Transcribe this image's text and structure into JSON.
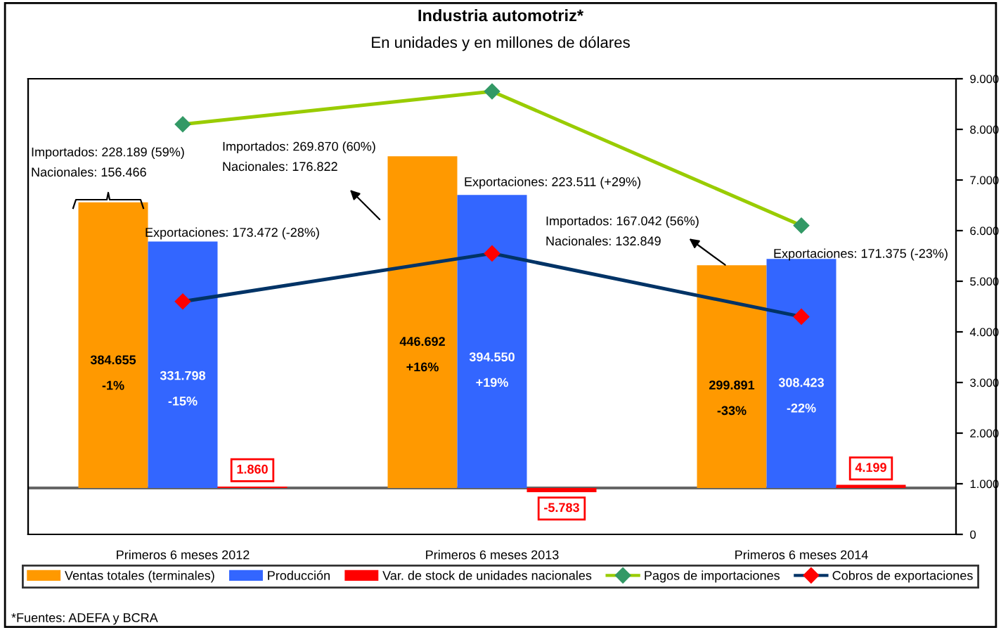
{
  "chart_data": {
    "type": "bar",
    "title": "Industria automotriz*",
    "subtitle": "En unidades y en millones de dólares",
    "categories": [
      "Primeros 6 meses 2012",
      "Primeros 6 meses 2013",
      "Primeros 6 meses 2014"
    ],
    "series": [
      {
        "name": "Ventas totales (terminales)",
        "color": "#ff9900",
        "values": [
          384655,
          446692,
          299891
        ],
        "value_labels": [
          "384.655\n\n-1%",
          "446.692\n\n+16%",
          "299.891\n\n-33%"
        ]
      },
      {
        "name": "Producción",
        "color": "#3366ff",
        "values": [
          331798,
          394550,
          308423
        ],
        "value_labels": [
          "331.798\n\n-15%",
          "394.550\n\n+19%",
          "308.423\n\n-22%"
        ]
      },
      {
        "name": "Var. de stock de unidades nacionales",
        "color": "#ff0000",
        "values": [
          1860,
          -5783,
          4199
        ],
        "value_labels": [
          "1.860",
          "-5.783",
          "4.199"
        ]
      },
      {
        "name": "Pagos de importaciones",
        "type": "line",
        "axis": "y2",
        "color": "#99cc00",
        "marker": "diamond",
        "values": [
          8100,
          8750,
          6100
        ]
      },
      {
        "name": "Cobros de exportaciones",
        "type": "line",
        "axis": "y2",
        "color": "#003366",
        "marker": "diamond",
        "values": [
          4600,
          5550,
          4300
        ]
      }
    ],
    "ylim": [
      -62500,
      551000
    ],
    "y2lim": [
      0,
      9000
    ],
    "y2ticks": [
      0,
      {
        "value": 1000,
        "label": "1.000"
      },
      {
        "value": 2000,
        "label": "2.000"
      },
      {
        "value": 3000,
        "label": "3.000"
      },
      {
        "value": 4000,
        "label": "4.000"
      },
      {
        "value": 5000,
        "label": "5.000"
      },
      {
        "value": 6000,
        "label": "6.000"
      },
      {
        "value": 7000,
        "label": "7.000"
      },
      {
        "value": 8000,
        "label": "8.000"
      },
      {
        "value": 9000,
        "label": "9.000"
      }
    ],
    "legend": "bottom",
    "grid": false,
    "annotations": [
      "Importados: 228.189 (59%)\nNacionales: 156.466",
      "Exportaciones: 173.472 (-28%)",
      "Importados: 269.870 (60%)\nNacionales: 176.822",
      "Exportaciones: 223.511 (+29%)",
      "Importados: 167.042 (56%)\nNacionales: 132.849",
      "Exportaciones: 171.375 (-23%)",
      "*Fuentes: ADEFA y BCRA"
    ]
  }
}
